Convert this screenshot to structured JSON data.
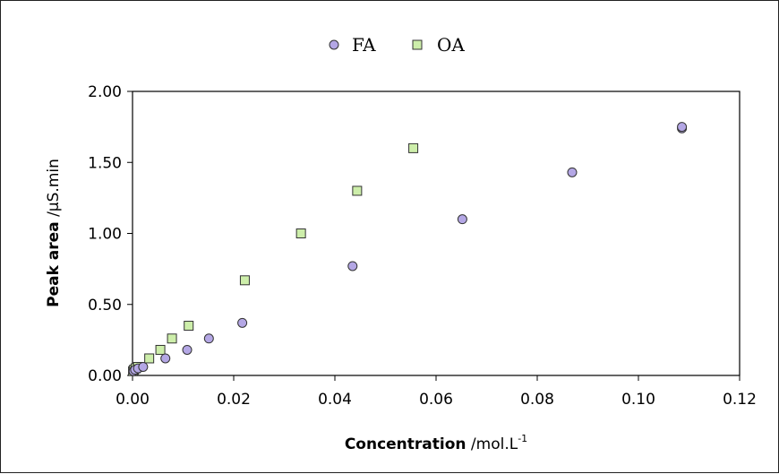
{
  "chart_data": {
    "type": "scatter",
    "xlabel": {
      "bold": "Concentration",
      "rest": " /mol.L",
      "sup": "-1"
    },
    "ylabel": {
      "bold": "Peak area",
      "rest": " /µS.min"
    },
    "xlim": [
      0,
      0.12
    ],
    "ylim": [
      0,
      2
    ],
    "xticks": [
      "0.00",
      "0.02",
      "0.04",
      "0.06",
      "0.08",
      "0.10",
      "0.12"
    ],
    "yticks": [
      "0.00",
      "0.50",
      "1.00",
      "1.50",
      "2.00"
    ],
    "grid": false,
    "legend_position": "top-center",
    "series": [
      {
        "name": "FA",
        "marker": "circle",
        "color": "#b4a7e5",
        "points": [
          {
            "x": 0.0002,
            "y": 0.03
          },
          {
            "x": 0.0005,
            "y": 0.04
          },
          {
            "x": 0.0011,
            "y": 0.05
          },
          {
            "x": 0.0021,
            "y": 0.06
          },
          {
            "x": 0.0065,
            "y": 0.12
          },
          {
            "x": 0.0108,
            "y": 0.18
          },
          {
            "x": 0.0151,
            "y": 0.26
          },
          {
            "x": 0.0217,
            "y": 0.37
          },
          {
            "x": 0.0435,
            "y": 0.77
          },
          {
            "x": 0.0652,
            "y": 1.1
          },
          {
            "x": 0.0869,
            "y": 1.43
          },
          {
            "x": 0.1086,
            "y": 1.74
          },
          {
            "x": 0.1086,
            "y": 1.75
          }
        ]
      },
      {
        "name": "OA",
        "marker": "square",
        "color": "#cdeeaa",
        "points": [
          {
            "x": 0.0001,
            "y": 0.03
          },
          {
            "x": 0.0003,
            "y": 0.04
          },
          {
            "x": 0.0006,
            "y": 0.05
          },
          {
            "x": 0.0011,
            "y": 0.06
          },
          {
            "x": 0.0033,
            "y": 0.12
          },
          {
            "x": 0.0055,
            "y": 0.18
          },
          {
            "x": 0.0078,
            "y": 0.26
          },
          {
            "x": 0.0111,
            "y": 0.35
          },
          {
            "x": 0.0222,
            "y": 0.67
          },
          {
            "x": 0.0333,
            "y": 1.0
          },
          {
            "x": 0.0444,
            "y": 1.3
          },
          {
            "x": 0.0555,
            "y": 1.6
          }
        ]
      }
    ]
  }
}
